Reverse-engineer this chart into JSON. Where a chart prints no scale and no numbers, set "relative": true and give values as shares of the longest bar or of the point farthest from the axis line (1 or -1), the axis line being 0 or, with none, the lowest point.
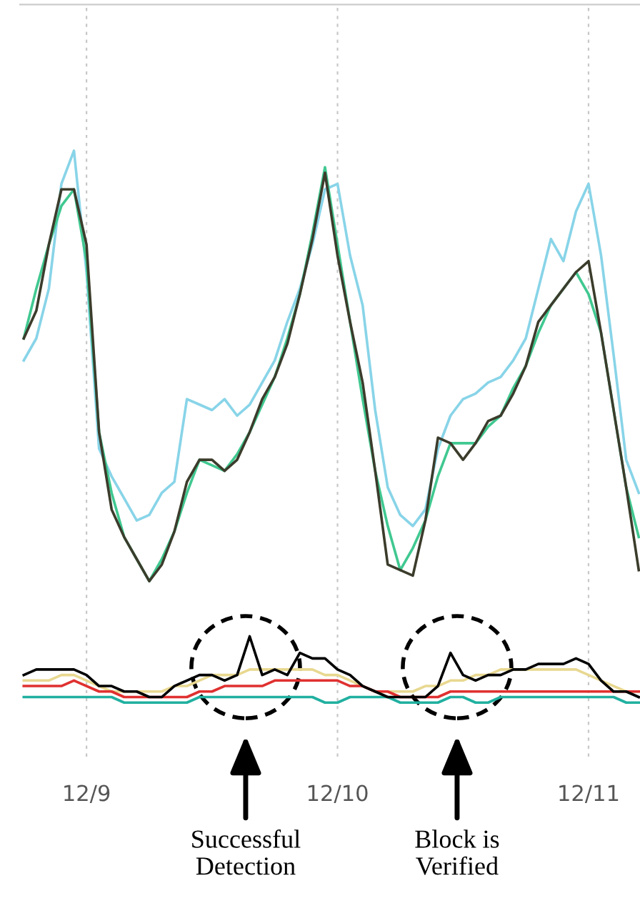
{
  "chart_data": {
    "type": "line",
    "relative": true,
    "categories": [
      null,
      null,
      null,
      null,
      null,
      "12/9",
      null,
      null,
      null,
      null,
      null,
      null,
      null,
      null,
      null,
      null,
      null,
      null,
      null,
      null,
      null,
      null,
      null,
      null,
      null,
      "12/10",
      null,
      null,
      null,
      null,
      null,
      null,
      null,
      null,
      null,
      null,
      null,
      null,
      null,
      null,
      null,
      null,
      null,
      null,
      null,
      "12/11",
      null,
      null,
      null,
      null
    ],
    "grid": "x",
    "marker": "none",
    "line_style": "solid",
    "series": [
      {
        "color": "#88d4e8",
        "values": [
          0.62,
          0.66,
          0.75,
          0.94,
          1.0,
          0.78,
          0.46,
          0.41,
          0.37,
          0.33,
          0.34,
          0.38,
          0.4,
          0.55,
          0.54,
          0.53,
          0.55,
          0.52,
          0.54,
          0.58,
          0.62,
          0.69,
          0.75,
          0.83,
          0.93,
          0.94,
          0.81,
          0.72,
          0.53,
          0.39,
          0.34,
          0.32,
          0.35,
          0.46,
          0.52,
          0.55,
          0.56,
          0.58,
          0.59,
          0.62,
          0.66,
          0.75,
          0.84,
          0.8,
          0.89,
          0.94,
          0.81,
          0.63,
          0.44,
          0.38
        ]
      },
      {
        "color": "#40c890",
        "values": [
          0.66,
          0.75,
          0.83,
          0.9,
          0.93,
          0.8,
          0.49,
          0.38,
          0.3,
          0.26,
          0.22,
          0.26,
          0.31,
          0.38,
          0.44,
          0.43,
          0.42,
          0.45,
          0.49,
          0.54,
          0.59,
          0.66,
          0.74,
          0.85,
          0.97,
          0.83,
          0.69,
          0.55,
          0.42,
          0.32,
          0.24,
          0.28,
          0.33,
          0.41,
          0.47,
          0.47,
          0.47,
          0.5,
          0.52,
          0.57,
          0.61,
          0.67,
          0.72,
          0.75,
          0.78,
          0.74,
          0.67,
          0.53,
          0.39,
          0.3
        ]
      },
      {
        "color": "#3c3c2c",
        "values": [
          0.66,
          0.71,
          0.83,
          0.93,
          0.93,
          0.83,
          0.49,
          0.35,
          0.3,
          0.26,
          0.22,
          0.25,
          0.31,
          0.4,
          0.44,
          0.44,
          0.42,
          0.44,
          0.49,
          0.55,
          0.59,
          0.65,
          0.74,
          0.84,
          0.96,
          0.81,
          0.69,
          0.58,
          0.42,
          0.25,
          0.24,
          0.23,
          0.33,
          0.48,
          0.47,
          0.44,
          0.47,
          0.51,
          0.52,
          0.56,
          0.61,
          0.69,
          0.72,
          0.75,
          0.78,
          0.8,
          0.67,
          0.53,
          0.39,
          0.24
        ]
      },
      {
        "color": "#e8d890",
        "values": [
          0.04,
          0.04,
          0.04,
          0.05,
          0.05,
          0.04,
          0.03,
          0.02,
          0.02,
          0.02,
          0.02,
          0.02,
          0.03,
          0.03,
          0.04,
          0.05,
          0.05,
          0.05,
          0.06,
          0.06,
          0.06,
          0.06,
          0.06,
          0.06,
          0.05,
          0.05,
          0.04,
          0.03,
          0.02,
          0.02,
          0.02,
          0.02,
          0.03,
          0.03,
          0.04,
          0.04,
          0.05,
          0.05,
          0.06,
          0.06,
          0.06,
          0.06,
          0.06,
          0.06,
          0.06,
          0.05,
          0.04,
          0.03,
          0.02,
          0.02
        ]
      },
      {
        "color": "#20b0a0",
        "values": [
          0.01,
          0.01,
          0.01,
          0.01,
          0.01,
          0.01,
          0.01,
          0.01,
          0.0,
          0.0,
          0.0,
          0.0,
          0.0,
          0.0,
          0.01,
          0.01,
          0.01,
          0.01,
          0.01,
          0.01,
          0.01,
          0.01,
          0.01,
          0.01,
          0.0,
          0.0,
          0.01,
          0.01,
          0.01,
          0.01,
          0.0,
          0.0,
          0.0,
          0.0,
          0.01,
          0.01,
          0.0,
          0.0,
          0.01,
          0.01,
          0.01,
          0.01,
          0.01,
          0.01,
          0.01,
          0.01,
          0.01,
          0.01,
          0.0,
          0.0
        ]
      },
      {
        "color": "#e03030",
        "values": [
          0.03,
          0.03,
          0.03,
          0.03,
          0.04,
          0.03,
          0.02,
          0.02,
          0.01,
          0.01,
          0.01,
          0.01,
          0.01,
          0.01,
          0.02,
          0.02,
          0.03,
          0.03,
          0.03,
          0.03,
          0.04,
          0.04,
          0.04,
          0.04,
          0.04,
          0.04,
          0.03,
          0.03,
          0.02,
          0.02,
          0.01,
          0.01,
          0.01,
          0.01,
          0.02,
          0.02,
          0.02,
          0.02,
          0.02,
          0.02,
          0.02,
          0.02,
          0.02,
          0.02,
          0.02,
          0.02,
          0.02,
          0.02,
          0.02,
          0.02
        ]
      },
      {
        "color": "#000000",
        "values": [
          0.05,
          0.06,
          0.06,
          0.06,
          0.06,
          0.05,
          0.03,
          0.03,
          0.02,
          0.02,
          0.01,
          0.01,
          0.03,
          0.04,
          0.05,
          0.05,
          0.04,
          0.05,
          0.12,
          0.05,
          0.06,
          0.05,
          0.09,
          0.08,
          0.08,
          0.06,
          0.05,
          0.03,
          0.02,
          0.01,
          0.01,
          0.01,
          0.01,
          0.03,
          0.09,
          0.05,
          0.04,
          0.05,
          0.05,
          0.06,
          0.06,
          0.07,
          0.07,
          0.07,
          0.08,
          0.07,
          0.04,
          0.02,
          0.02,
          0.01
        ]
      }
    ],
    "annotations": [
      "Successful\nDetection",
      "Block is\nVerified"
    ]
  }
}
